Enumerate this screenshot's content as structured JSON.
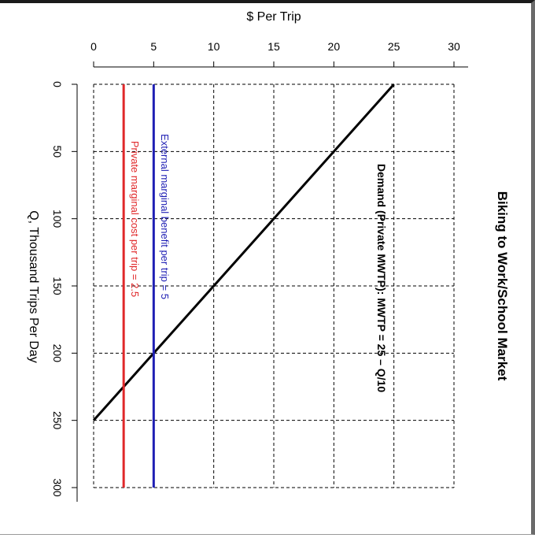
{
  "chart_data": {
    "type": "line",
    "title": "Biking to Work/School Market",
    "xlabel": "$ Per Trip",
    "ylabel": "Q, Thousand Trips Per Day",
    "x_ticks": [
      0,
      5,
      10,
      15,
      20,
      25,
      30
    ],
    "y_ticks": [
      0,
      50,
      100,
      150,
      200,
      250,
      300
    ],
    "xlim": [
      0,
      30
    ],
    "ylim": [
      0,
      300
    ],
    "grid": true,
    "orientation": "rotated 90 degrees clockwise",
    "series": [
      {
        "name": "Demand (Private MWTP): MWTP = 25 – Q/10",
        "color": "#000000",
        "points": [
          {
            "price": 25,
            "q": 0
          },
          {
            "price": 0,
            "q": 250
          }
        ]
      },
      {
        "name": "External marginal benefit per trip = 5",
        "color": "#1f1fb4",
        "points": [
          {
            "price": 5,
            "q": 0
          },
          {
            "price": 5,
            "q": 300
          }
        ]
      },
      {
        "name": "Private marginal cost per trip = 2.5",
        "color": "#e0282a",
        "points": [
          {
            "price": 2.5,
            "q": 0
          },
          {
            "price": 2.5,
            "q": 300
          }
        ]
      }
    ]
  }
}
